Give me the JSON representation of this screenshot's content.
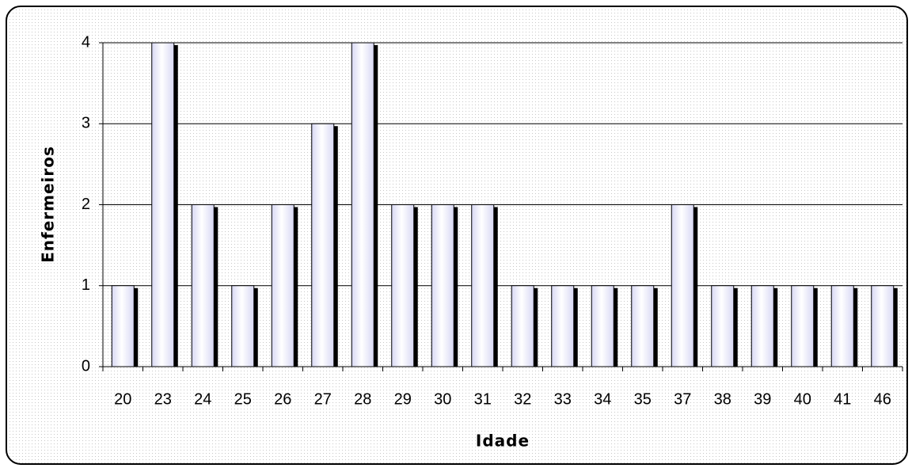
{
  "chart_data": {
    "type": "bar",
    "x_label": "Idade",
    "y_label": "Enfermeiros",
    "categories": [
      "20",
      "23",
      "24",
      "25",
      "26",
      "27",
      "28",
      "29",
      "30",
      "31",
      "32",
      "33",
      "34",
      "35",
      "37",
      "38",
      "39",
      "40",
      "41",
      "46"
    ],
    "values": [
      1,
      4,
      2,
      1,
      2,
      3,
      4,
      2,
      2,
      2,
      1,
      1,
      1,
      1,
      2,
      1,
      1,
      1,
      1,
      1
    ],
    "color": "#d8d8f4",
    "ylim": [
      0,
      4
    ],
    "yticks": [
      0,
      1,
      2,
      3,
      4
    ],
    "grid": true
  }
}
